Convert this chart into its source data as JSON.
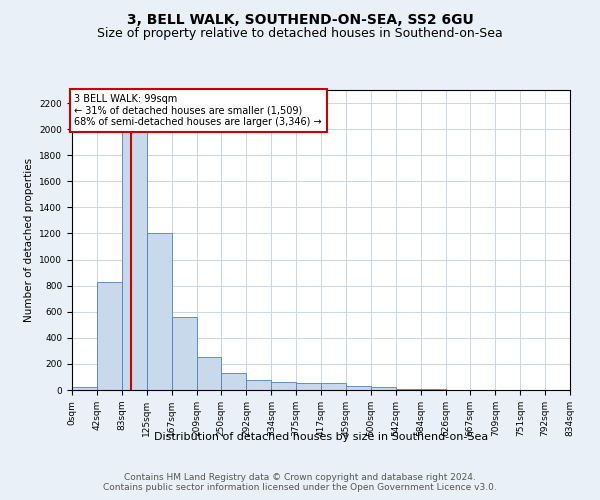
{
  "title": "3, BELL WALK, SOUTHEND-ON-SEA, SS2 6GU",
  "subtitle": "Size of property relative to detached houses in Southend-on-Sea",
  "xlabel": "Distribution of detached houses by size in Southend-on-Sea",
  "ylabel": "Number of detached properties",
  "bins": [
    0,
    42,
    83,
    125,
    167,
    209,
    250,
    292,
    334,
    375,
    417,
    459,
    500,
    542,
    584,
    626,
    667,
    709,
    751,
    792,
    834
  ],
  "bar_heights": [
    20,
    830,
    2100,
    1200,
    560,
    250,
    130,
    80,
    60,
    55,
    50,
    30,
    20,
    10,
    5,
    3,
    2,
    1,
    1,
    0
  ],
  "bar_color": "#c9d9ec",
  "bar_edge_color": "#4f81bd",
  "grid_color": "#c8d4e8",
  "vline_x": 99,
  "vline_color": "#cc0000",
  "annotation_text": "3 BELL WALK: 99sqm\n← 31% of detached houses are smaller (1,509)\n68% of semi-detached houses are larger (3,346) →",
  "annotation_box_color": "#cc0000",
  "annotation_bg": "white",
  "ylim": [
    0,
    2300
  ],
  "yticks": [
    0,
    200,
    400,
    600,
    800,
    1000,
    1200,
    1400,
    1600,
    1800,
    2000,
    2200
  ],
  "footer_line1": "Contains HM Land Registry data © Crown copyright and database right 2024.",
  "footer_line2": "Contains public sector information licensed under the Open Government Licence v3.0.",
  "bg_color": "#eaf0f8",
  "plot_bg_color": "white",
  "title_fontsize": 10,
  "subtitle_fontsize": 9,
  "tick_fontsize": 6.5,
  "ylabel_fontsize": 7.5,
  "xlabel_fontsize": 8,
  "footer_fontsize": 6.5,
  "annotation_fontsize": 7
}
